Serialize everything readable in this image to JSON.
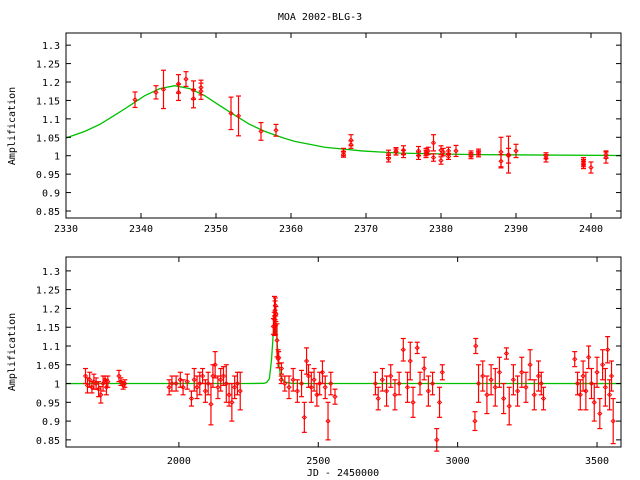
{
  "colors": {
    "data": "#ff0000",
    "model": "#00c000",
    "frame": "#000000"
  },
  "chart_data": [
    {
      "type": "scatter",
      "title": "MOA 2002-BLG-3",
      "xlabel": "",
      "ylabel": "Amplification",
      "xlim": [
        2330,
        2404
      ],
      "ylim": [
        0.831,
        1.333
      ],
      "xticks": [
        2330,
        2340,
        2350,
        2360,
        2370,
        2380,
        2390,
        2400
      ],
      "yticks": [
        0.85,
        0.9,
        0.95,
        1,
        1.05,
        1.1,
        1.15,
        1.2,
        1.25,
        1.3
      ],
      "grid": false,
      "series": [
        {
          "kind": "points-with-errorbars",
          "points": [
            [
              2339.2,
              1.152,
              0.021
            ],
            [
              2342,
              1.172,
              0.018
            ],
            [
              2343,
              1.18,
              0.052
            ],
            [
              2345,
              1.195,
              0.025
            ],
            [
              2345,
              1.172,
              0.022
            ],
            [
              2346,
              1.208,
              0.02
            ],
            [
              2347,
              1.155,
              0.025
            ],
            [
              2347,
              1.178,
              0.025
            ],
            [
              2348,
              1.185,
              0.02
            ],
            [
              2348,
              1.175,
              0.022
            ],
            [
              2352,
              1.115,
              0.044
            ],
            [
              2353,
              1.108,
              0.054
            ],
            [
              2356,
              1.066,
              0.024
            ],
            [
              2358,
              1.069,
              0.016
            ],
            [
              2367,
              1.01,
              0.01
            ],
            [
              2367,
              1.004,
              0.008
            ],
            [
              2368,
              1.03,
              0.01
            ],
            [
              2368,
              1.042,
              0.015
            ],
            [
              2373,
              1.005,
              0.01
            ],
            [
              2373,
              0.992,
              0.009
            ],
            [
              2374,
              1.012,
              0.01
            ],
            [
              2374,
              1.01,
              0.008
            ],
            [
              2375,
              1.015,
              0.012
            ],
            [
              2375,
              1.005,
              0.01
            ],
            [
              2377,
              1.013,
              0.012
            ],
            [
              2377,
              1.0,
              0.01
            ],
            [
              2378,
              1.01,
              0.01
            ],
            [
              2378,
              1.005,
              0.01
            ],
            [
              2378.3,
              1.013,
              0.01
            ],
            [
              2379,
              1.035,
              0.022
            ],
            [
              2379,
              0.995,
              0.01
            ],
            [
              2380,
              1.015,
              0.012
            ],
            [
              2380,
              0.987,
              0.01
            ],
            [
              2380.3,
              1.01,
              0.01
            ],
            [
              2381,
              1.013,
              0.01
            ],
            [
              2381,
              0.998,
              0.008
            ],
            [
              2382,
              1.013,
              0.015
            ],
            [
              2384,
              1.0,
              0.008
            ],
            [
              2384,
              1.005,
              0.008
            ],
            [
              2385,
              1.01,
              0.008
            ],
            [
              2385,
              1.005,
              0.008
            ],
            [
              2388,
              1.01,
              0.04
            ],
            [
              2388,
              0.985,
              0.018
            ],
            [
              2389,
              1.003,
              0.05
            ],
            [
              2389,
              1.0,
              0.02
            ],
            [
              2390,
              1.013,
              0.018
            ],
            [
              2394,
              1.0,
              0.008
            ],
            [
              2394,
              0.993,
              0.01
            ],
            [
              2399,
              0.98,
              0.01
            ],
            [
              2399,
              0.975,
              0.01
            ],
            [
              2399,
              0.985,
              0.01
            ],
            [
              2400,
              0.968,
              0.015
            ],
            [
              2402,
              0.995,
              0.015
            ],
            [
              2402,
              1.003,
              0.01
            ]
          ]
        },
        {
          "kind": "model-line",
          "x": [
            2330,
            2332.5,
            2334.5,
            2336.5,
            2338.5,
            2340.5,
            2342.5,
            2344.5,
            2346.5,
            2348.5,
            2350.5,
            2352.5,
            2354.5,
            2356.5,
            2359,
            2360.5,
            2364.5,
            2369.5,
            2374.5,
            2384.5,
            2404.5
          ],
          "y": [
            1.048,
            1.066,
            1.085,
            1.11,
            1.136,
            1.163,
            1.182,
            1.19,
            1.182,
            1.163,
            1.136,
            1.11,
            1.085,
            1.066,
            1.048,
            1.039,
            1.023,
            1.013,
            1.007,
            1.003,
            1.0006
          ]
        }
      ]
    },
    {
      "type": "scatter",
      "title": "",
      "xlabel": "JD - 2450000",
      "ylabel": "Amplification",
      "xlim": [
        1595,
        3586
      ],
      "ylim": [
        0.831,
        1.337
      ],
      "xticks": [
        2000,
        2500,
        3000,
        3500
      ],
      "yticks": [
        0.85,
        0.9,
        0.95,
        1,
        1.05,
        1.1,
        1.15,
        1.2,
        1.25,
        1.3
      ],
      "grid": false,
      "series": [
        {
          "kind": "points-with-errorbars",
          "points": [
            [
              1665,
              1.02,
              0.02
            ],
            [
              1672,
              0.995,
              0.02
            ],
            [
              1680,
              1.01,
              0.02
            ],
            [
              1688,
              0.99,
              0.015
            ],
            [
              1695,
              1.005,
              0.02
            ],
            [
              1703,
              1.0,
              0.015
            ],
            [
              1712,
              0.985,
              0.02
            ],
            [
              1720,
              0.97,
              0.022
            ],
            [
              1728,
              1.0,
              0.02
            ],
            [
              1735,
              1.01,
              0.01
            ],
            [
              1740,
              0.99,
              0.02
            ],
            [
              1745,
              1.005,
              0.015
            ],
            [
              1785,
              1.02,
              0.015
            ],
            [
              1792,
              1.005,
              0.01
            ],
            [
              1800,
              0.995,
              0.01
            ],
            [
              1806,
              1.0,
              0.01
            ],
            [
              1965,
              0.99,
              0.02
            ],
            [
              1975,
              1.0,
              0.02
            ],
            [
              1990,
              1.0,
              0.02
            ],
            [
              2005,
              1.01,
              0.02
            ],
            [
              2015,
              0.99,
              0.02
            ],
            [
              2030,
              1.005,
              0.02
            ],
            [
              2045,
              0.96,
              0.02
            ],
            [
              2055,
              1.01,
              0.03
            ],
            [
              2065,
              0.99,
              0.03
            ],
            [
              2075,
              1.0,
              0.03
            ],
            [
              2085,
              1.02,
              0.02
            ],
            [
              2095,
              0.98,
              0.03
            ],
            [
              2105,
              1.0,
              0.03
            ],
            [
              2115,
              0.945,
              0.055
            ],
            [
              2122,
              1.02,
              0.03
            ],
            [
              2130,
              1.05,
              0.035
            ],
            [
              2140,
              0.99,
              0.03
            ],
            [
              2150,
              1.01,
              0.03
            ],
            [
              2160,
              1.02,
              0.025
            ],
            [
              2170,
              1.0,
              0.05
            ],
            [
              2180,
              0.97,
              0.03
            ],
            [
              2190,
              0.95,
              0.05
            ],
            [
              2200,
              0.99,
              0.03
            ],
            [
              2210,
              1.0,
              0.03
            ],
            [
              2220,
              0.98,
              0.05
            ],
            [
              2339,
              1.152,
              0.021
            ],
            [
              2342,
              1.172,
              0.018
            ],
            [
              2343,
              1.18,
              0.052
            ],
            [
              2345,
              1.195,
              0.025
            ],
            [
              2346,
              1.208,
              0.02
            ],
            [
              2347,
              1.155,
              0.025
            ],
            [
              2348,
              1.185,
              0.02
            ],
            [
              2352,
              1.115,
              0.044
            ],
            [
              2356,
              1.066,
              0.024
            ],
            [
              2358,
              1.069,
              0.016
            ],
            [
              2367,
              1.01,
              0.01
            ],
            [
              2368,
              1.04,
              0.015
            ],
            [
              2380,
              1.0,
              0.02
            ],
            [
              2395,
              0.99,
              0.03
            ],
            [
              2410,
              1.01,
              0.03
            ],
            [
              2425,
              0.98,
              0.03
            ],
            [
              2440,
              1.0,
              0.035
            ],
            [
              2450,
              0.91,
              0.04
            ],
            [
              2458,
              1.06,
              0.035
            ],
            [
              2465,
              1.02,
              0.03
            ],
            [
              2475,
              0.99,
              0.04
            ],
            [
              2485,
              1.01,
              0.03
            ],
            [
              2495,
              0.97,
              0.03
            ],
            [
              2505,
              1.0,
              0.03
            ],
            [
              2515,
              1.03,
              0.03
            ],
            [
              2525,
              0.99,
              0.03
            ],
            [
              2535,
              0.9,
              0.05
            ],
            [
              2545,
              1.0,
              0.03
            ],
            [
              2560,
              0.965,
              0.02
            ],
            [
              2705,
              1.0,
              0.03
            ],
            [
              2715,
              0.96,
              0.03
            ],
            [
              2730,
              1.01,
              0.03
            ],
            [
              2745,
              0.98,
              0.04
            ],
            [
              2760,
              1.02,
              0.03
            ],
            [
              2775,
              0.97,
              0.04
            ],
            [
              2790,
              1.0,
              0.03
            ],
            [
              2805,
              1.09,
              0.03
            ],
            [
              2820,
              0.99,
              0.04
            ],
            [
              2830,
              1.06,
              0.05
            ],
            [
              2840,
              0.95,
              0.04
            ],
            [
              2855,
              1.095,
              0.015
            ],
            [
              2865,
              1.0,
              0.03
            ],
            [
              2880,
              1.04,
              0.03
            ],
            [
              2895,
              0.98,
              0.04
            ],
            [
              2910,
              1.0,
              0.03
            ],
            [
              2925,
              0.85,
              0.03
            ],
            [
              2935,
              0.95,
              0.04
            ],
            [
              2945,
              1.03,
              0.02
            ],
            [
              3065,
              1.1,
              0.02
            ],
            [
              3062,
              0.9,
              0.025
            ],
            [
              3075,
              1.0,
              0.05
            ],
            [
              3090,
              1.02,
              0.04
            ],
            [
              3105,
              0.97,
              0.05
            ],
            [
              3120,
              1.01,
              0.04
            ],
            [
              3135,
              0.99,
              0.05
            ],
            [
              3150,
              1.03,
              0.04
            ],
            [
              3165,
              0.96,
              0.04
            ],
            [
              3175,
              1.08,
              0.015
            ],
            [
              3185,
              0.94,
              0.05
            ],
            [
              3200,
              1.01,
              0.04
            ],
            [
              3215,
              0.98,
              0.04
            ],
            [
              3230,
              1.03,
              0.04
            ],
            [
              3245,
              0.99,
              0.04
            ],
            [
              3260,
              1.05,
              0.04
            ],
            [
              3275,
              0.97,
              0.04
            ],
            [
              3290,
              1.02,
              0.04
            ],
            [
              3300,
              1.0,
              0.03
            ],
            [
              3308,
              0.96,
              0.03
            ],
            [
              3420,
              1.065,
              0.02
            ],
            [
              3430,
              1.0,
              0.03
            ],
            [
              3440,
              0.97,
              0.04
            ],
            [
              3450,
              1.02,
              0.04
            ],
            [
              3460,
              0.98,
              0.05
            ],
            [
              3470,
              1.07,
              0.03
            ],
            [
              3480,
              1.0,
              0.04
            ],
            [
              3490,
              0.95,
              0.05
            ],
            [
              3500,
              1.03,
              0.04
            ],
            [
              3510,
              0.92,
              0.04
            ],
            [
              3520,
              1.05,
              0.04
            ],
            [
              3530,
              0.99,
              0.05
            ],
            [
              3538,
              1.09,
              0.035
            ],
            [
              3545,
              0.97,
              0.04
            ],
            [
              3552,
              1.02,
              0.04
            ],
            [
              3558,
              0.9,
              0.06
            ]
          ]
        },
        {
          "kind": "model-line",
          "x": [
            1595,
            2244.5,
            2304.5,
            2314.5,
            2324.5,
            2329.5,
            2332.5,
            2336.5,
            2340.5,
            2344.5,
            2348.5,
            2352.5,
            2356.5,
            2359.5,
            2364.5,
            2374.5,
            2384.5,
            2404.5,
            2444.5,
            3586
          ],
          "y": [
            1.0,
            1.0001,
            1.0006,
            1.0027,
            1.0127,
            1.045,
            1.066,
            1.11,
            1.163,
            1.19,
            1.163,
            1.11,
            1.066,
            1.045,
            1.023,
            1.007,
            1.003,
            1.0006,
            1.0001,
            1.0
          ]
        }
      ]
    }
  ]
}
